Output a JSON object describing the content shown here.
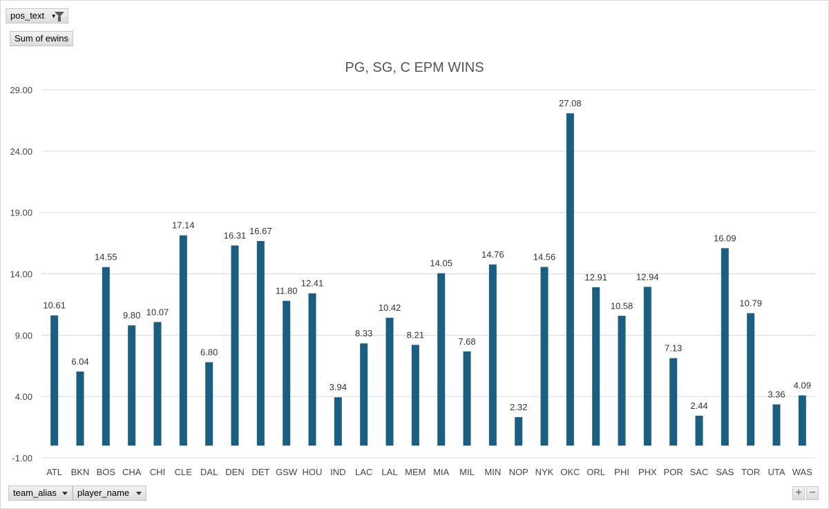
{
  "filters": {
    "pos_label": "pos_text",
    "values_label": "Sum of ewins",
    "axis_fields": [
      "team_alias",
      "player_name"
    ],
    "zoom_in": "+",
    "zoom_out": "−"
  },
  "colors": {
    "bar": "#1a5e82",
    "grid": "#d9d9d9"
  },
  "chart_data": {
    "type": "bar",
    "title": "PG, SG, C EPM WINS",
    "xlabel": "",
    "ylabel": "",
    "ylim": [
      -1,
      29
    ],
    "yticks": [
      "29.00",
      "24.00",
      "19.00",
      "14.00",
      "9.00",
      "4.00",
      "-1.00"
    ],
    "ytick_values": [
      29,
      24,
      19,
      14,
      9,
      4,
      -1
    ],
    "grid": true,
    "legend": "none",
    "categories": [
      "ATL",
      "BKN",
      "BOS",
      "CHA",
      "CHI",
      "CLE",
      "DAL",
      "DEN",
      "DET",
      "GSW",
      "HOU",
      "IND",
      "LAC",
      "LAL",
      "MEM",
      "MIA",
      "MIL",
      "MIN",
      "NOP",
      "NYK",
      "OKC",
      "ORL",
      "PHI",
      "PHX",
      "POR",
      "SAC",
      "SAS",
      "TOR",
      "UTA",
      "WAS"
    ],
    "values": [
      10.61,
      6.04,
      14.55,
      9.8,
      10.07,
      17.14,
      6.8,
      16.31,
      16.67,
      11.8,
      12.41,
      3.94,
      8.33,
      10.42,
      8.21,
      14.05,
      7.68,
      14.76,
      2.32,
      14.56,
      27.08,
      12.91,
      10.58,
      12.94,
      7.13,
      2.44,
      16.09,
      10.79,
      3.36,
      4.09
    ],
    "value_labels": [
      "10.61",
      "6.04",
      "14.55",
      "9.80",
      "10.07",
      "17.14",
      "6.80",
      "16.31",
      "16.67",
      "11.80",
      "12.41",
      "3.94",
      "8.33",
      "10.42",
      "8.21",
      "14.05",
      "7.68",
      "14.76",
      "2.32",
      "14.56",
      "27.08",
      "12.91",
      "10.58",
      "12.94",
      "7.13",
      "2.44",
      "16.09",
      "10.79",
      "3.36",
      "4.09"
    ]
  }
}
